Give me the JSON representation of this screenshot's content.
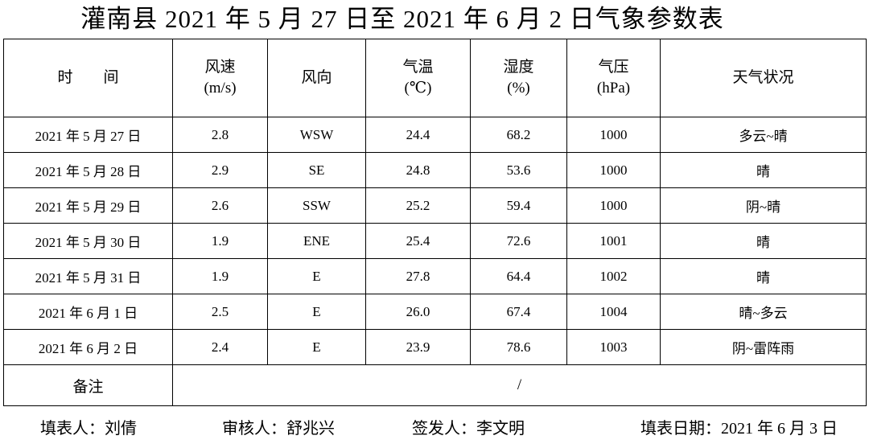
{
  "title": "灌南县 2021 年 5 月 27 日至 2021 年 6 月 2 日气象参数表",
  "table": {
    "header": [
      [
        "时　　间"
      ],
      [
        "风速",
        "(m/s)"
      ],
      [
        "风向"
      ],
      [
        "气温",
        "(℃)"
      ],
      [
        "湿度",
        "(%)"
      ],
      [
        "气压",
        "(hPa)"
      ],
      [
        "天气状况"
      ]
    ],
    "rows": [
      [
        "2021 年 5 月 27 日",
        "2.8",
        "WSW",
        "24.4",
        "68.2",
        "1000",
        "多云~晴"
      ],
      [
        "2021 年 5 月 28 日",
        "2.9",
        "SE",
        "24.8",
        "53.6",
        "1000",
        "晴"
      ],
      [
        "2021 年 5 月 29 日",
        "2.6",
        "SSW",
        "25.2",
        "59.4",
        "1000",
        "阴~晴"
      ],
      [
        "2021 年 5 月 30 日",
        "1.9",
        "ENE",
        "25.4",
        "72.6",
        "1001",
        "晴"
      ],
      [
        "2021 年 5 月 31 日",
        "1.9",
        "E",
        "27.8",
        "64.4",
        "1002",
        "晴"
      ],
      [
        "2021 年 6 月 1 日",
        "2.5",
        "E",
        "26.0",
        "67.4",
        "1004",
        "晴~多云"
      ],
      [
        "2021 年 6 月 2 日",
        "2.4",
        "E",
        "23.9",
        "78.6",
        "1003",
        "阴~雷阵雨"
      ]
    ],
    "remark_label": "备注",
    "remark_value": "/"
  },
  "footer": [
    "填表人：刘倩",
    "审核人：舒兆兴",
    "签发人：李文明",
    "填表日期：2021 年 6 月 3 日"
  ]
}
